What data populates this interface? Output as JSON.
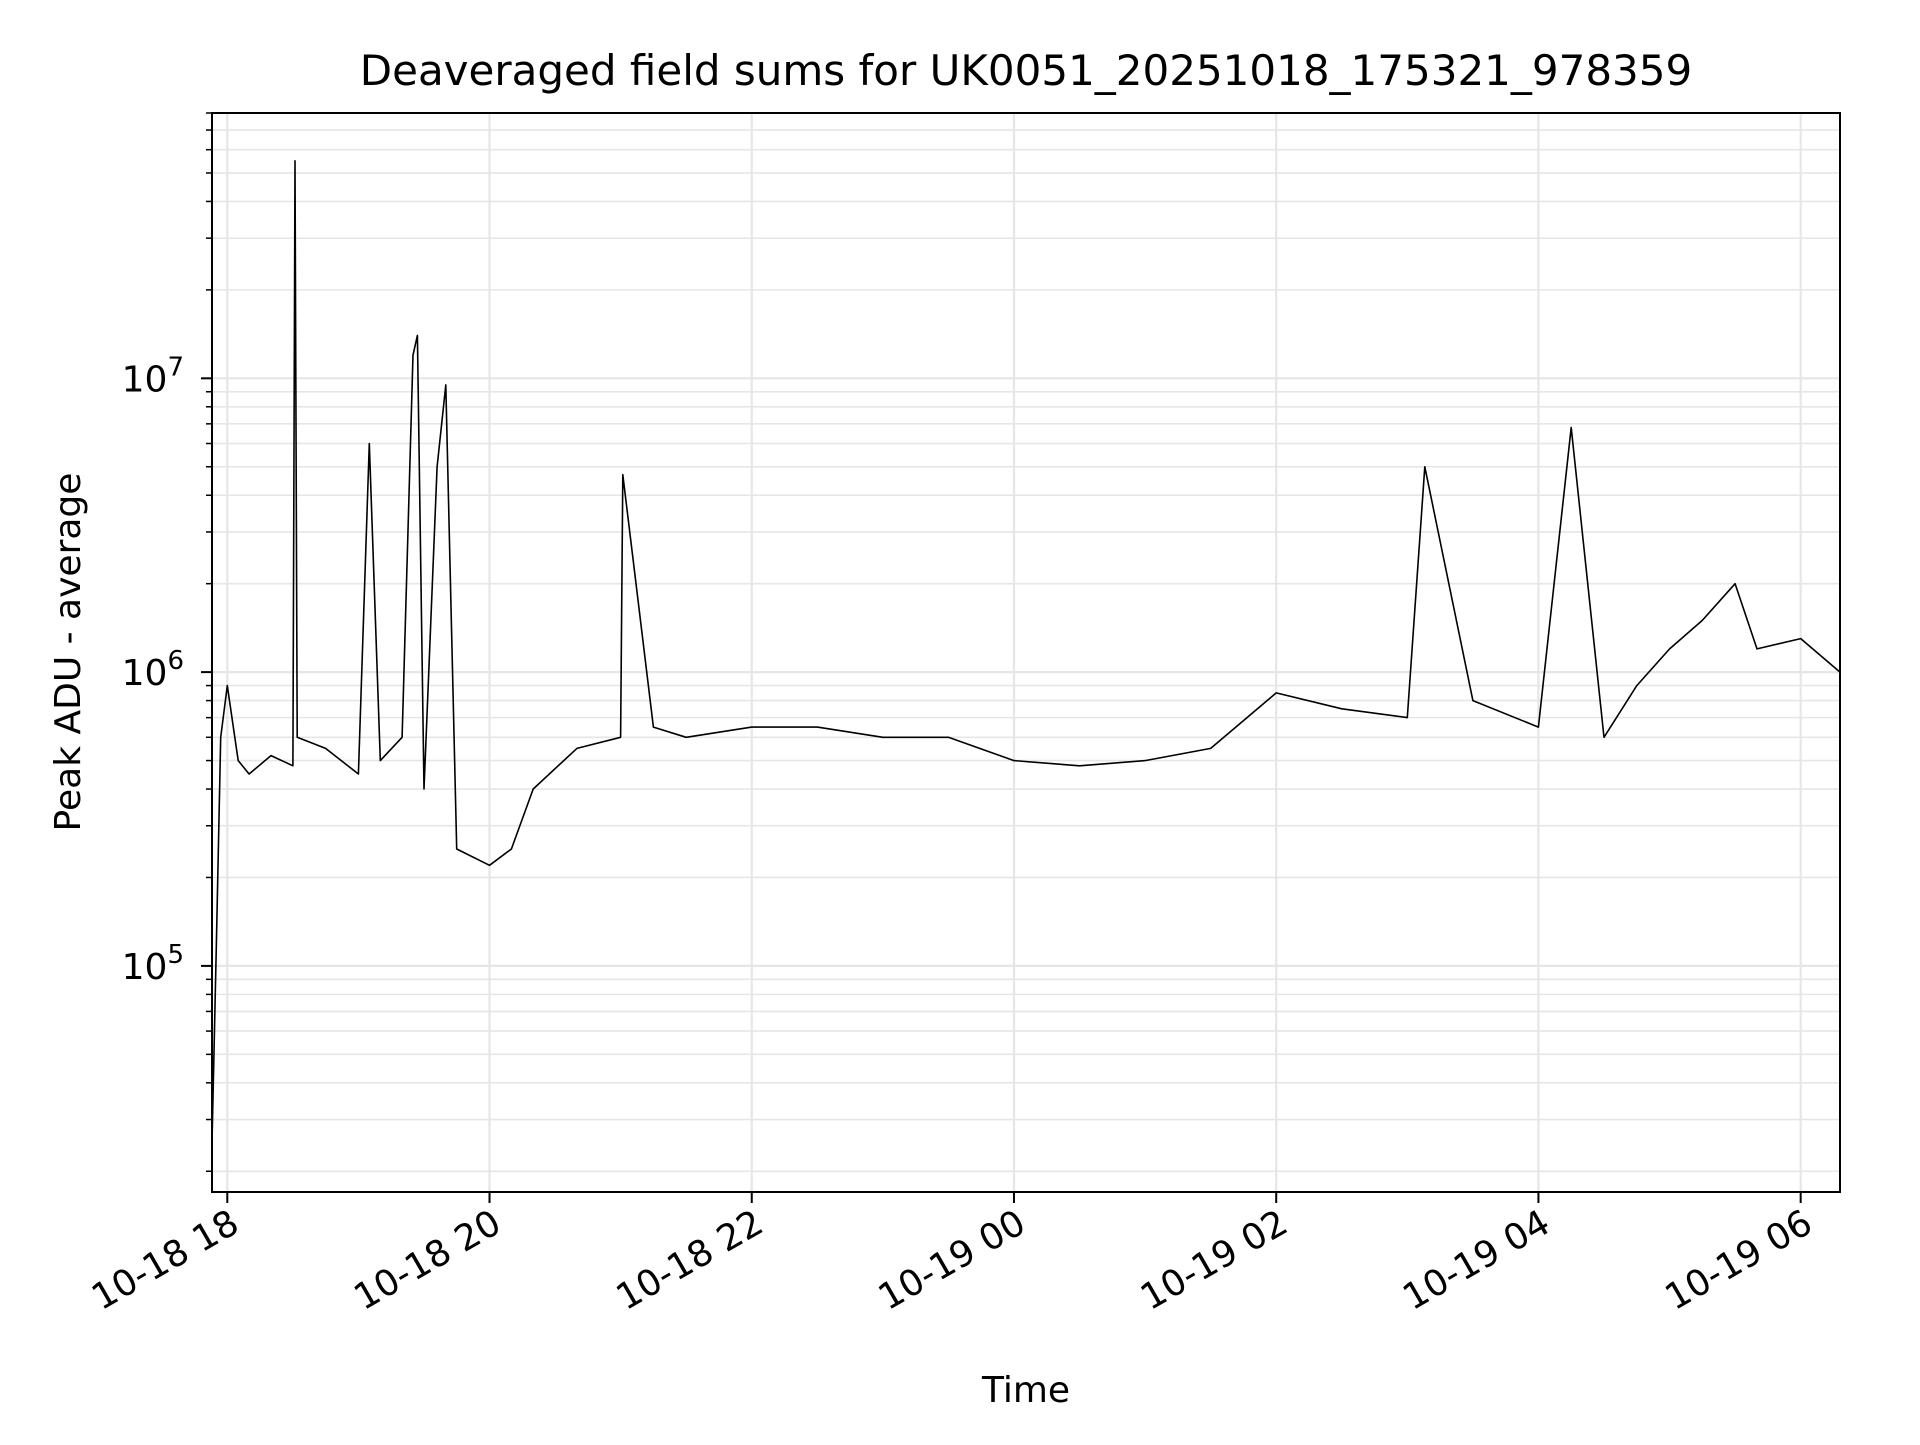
{
  "chart_data": {
    "type": "line",
    "title": "Deaveraged field sums for UK0051_20251018_175321_978359",
    "xlabel": "Time",
    "ylabel": "Peak ADU - average",
    "yscale": "log",
    "ylim": [
      17000,
      80000000
    ],
    "xlim": [
      "2025-10-18 17:53",
      "2025-10-19 06:18"
    ],
    "grid": true,
    "line_color": "#000000",
    "grid_color": "#e6e6e6",
    "x_ticks": [
      {
        "t": "2025-10-18 18:00",
        "label": "10-18 18"
      },
      {
        "t": "2025-10-18 20:00",
        "label": "10-18 20"
      },
      {
        "t": "2025-10-18 22:00",
        "label": "10-18 22"
      },
      {
        "t": "2025-10-19 00:00",
        "label": "10-19 00"
      },
      {
        "t": "2025-10-19 02:00",
        "label": "10-19 02"
      },
      {
        "t": "2025-10-19 04:00",
        "label": "10-19 04"
      },
      {
        "t": "2025-10-19 06:00",
        "label": "10-19 06"
      }
    ],
    "y_ticks": [
      {
        "value": 100000,
        "base": "10",
        "exp": "5"
      },
      {
        "value": 1000000,
        "base": "10",
        "exp": "6"
      },
      {
        "value": 10000000,
        "base": "10",
        "exp": "7"
      }
    ],
    "series": [
      {
        "points": [
          [
            "2025-10-18 17:53",
            25000
          ],
          [
            "2025-10-18 17:55",
            120000
          ],
          [
            "2025-10-18 17:57",
            600000
          ],
          [
            "2025-10-18 18:00",
            900000
          ],
          [
            "2025-10-18 18:05",
            500000
          ],
          [
            "2025-10-18 18:10",
            450000
          ],
          [
            "2025-10-18 18:20",
            520000
          ],
          [
            "2025-10-18 18:30",
            480000
          ],
          [
            "2025-10-18 18:31",
            55000000
          ],
          [
            "2025-10-18 18:32",
            600000
          ],
          [
            "2025-10-18 18:45",
            550000
          ],
          [
            "2025-10-18 19:00",
            450000
          ],
          [
            "2025-10-18 19:05",
            6000000
          ],
          [
            "2025-10-18 19:10",
            500000
          ],
          [
            "2025-10-18 19:20",
            600000
          ],
          [
            "2025-10-18 19:25",
            12000000
          ],
          [
            "2025-10-18 19:27",
            14000000
          ],
          [
            "2025-10-18 19:30",
            400000
          ],
          [
            "2025-10-18 19:36",
            5000000
          ],
          [
            "2025-10-18 19:40",
            9500000
          ],
          [
            "2025-10-18 19:45",
            250000
          ],
          [
            "2025-10-18 20:00",
            220000
          ],
          [
            "2025-10-18 20:10",
            250000
          ],
          [
            "2025-10-18 20:20",
            400000
          ],
          [
            "2025-10-18 20:40",
            550000
          ],
          [
            "2025-10-18 21:00",
            600000
          ],
          [
            "2025-10-18 21:01",
            4700000
          ],
          [
            "2025-10-18 21:15",
            650000
          ],
          [
            "2025-10-18 21:30",
            600000
          ],
          [
            "2025-10-18 22:00",
            650000
          ],
          [
            "2025-10-18 22:30",
            650000
          ],
          [
            "2025-10-18 23:00",
            600000
          ],
          [
            "2025-10-18 23:30",
            600000
          ],
          [
            "2025-10-19 00:00",
            500000
          ],
          [
            "2025-10-19 00:30",
            480000
          ],
          [
            "2025-10-19 01:00",
            500000
          ],
          [
            "2025-10-19 01:30",
            550000
          ],
          [
            "2025-10-19 02:00",
            850000
          ],
          [
            "2025-10-19 02:30",
            750000
          ],
          [
            "2025-10-19 03:00",
            700000
          ],
          [
            "2025-10-19 03:08",
            5000000
          ],
          [
            "2025-10-19 03:30",
            800000
          ],
          [
            "2025-10-19 04:00",
            650000
          ],
          [
            "2025-10-19 04:15",
            6800000
          ],
          [
            "2025-10-19 04:30",
            600000
          ],
          [
            "2025-10-19 04:45",
            900000
          ],
          [
            "2025-10-19 05:00",
            1200000
          ],
          [
            "2025-10-19 05:15",
            1500000
          ],
          [
            "2025-10-19 05:30",
            2000000
          ],
          [
            "2025-10-19 05:40",
            1200000
          ],
          [
            "2025-10-19 06:00",
            1300000
          ],
          [
            "2025-10-19 06:18",
            1000000
          ]
        ]
      }
    ]
  }
}
